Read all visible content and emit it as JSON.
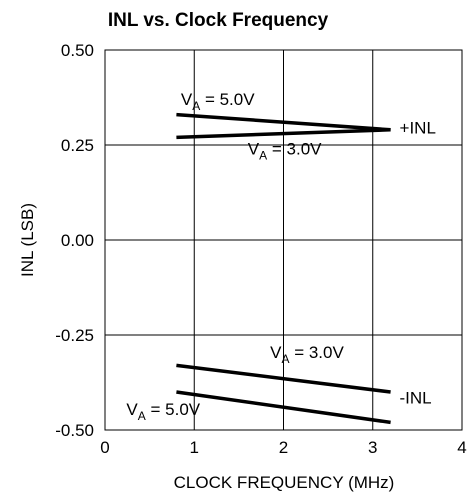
{
  "chart_data": {
    "type": "line",
    "title": "INL vs. Clock Frequency",
    "xlabel": "CLOCK FREQUENCY (MHz)",
    "ylabel": "INL (LSB)",
    "xlim": [
      0,
      4
    ],
    "ylim": [
      -0.5,
      0.5
    ],
    "x_ticks": [
      "0",
      "1",
      "2",
      "3",
      "4"
    ],
    "y_ticks": [
      "0.50",
      "0.25",
      "0.00",
      "-0.25",
      "-0.50"
    ],
    "grid": true,
    "series": [
      {
        "x": [
          0.8,
          3.2
        ],
        "y": [
          0.33,
          0.29
        ]
      },
      {
        "x": [
          0.8,
          3.2
        ],
        "y": [
          0.27,
          0.29
        ]
      },
      {
        "x": [
          0.8,
          3.2
        ],
        "y": [
          -0.33,
          -0.4
        ]
      },
      {
        "x": [
          0.8,
          3.2
        ],
        "y": [
          -0.4,
          -0.48
        ]
      }
    ],
    "annotations": [
      {
        "main": "V",
        "sub": "A",
        "rest": " = 5.0V",
        "x": 0.85,
        "y": 0.355
      },
      {
        "main": "V",
        "sub": "A",
        "rest": " = 3.0V",
        "x": 1.6,
        "y": 0.225
      },
      {
        "main": "+INL",
        "sub": "",
        "rest": "",
        "x": 3.3,
        "y": 0.28
      },
      {
        "main": "V",
        "sub": "A",
        "rest": " = 3.0V",
        "x": 1.85,
        "y": -0.31
      },
      {
        "main": "V",
        "sub": "A",
        "rest": " = 5.0V",
        "x": 0.24,
        "y": -0.46
      },
      {
        "main": "-INL",
        "sub": "",
        "rest": "",
        "x": 3.3,
        "y": -0.43
      }
    ]
  }
}
